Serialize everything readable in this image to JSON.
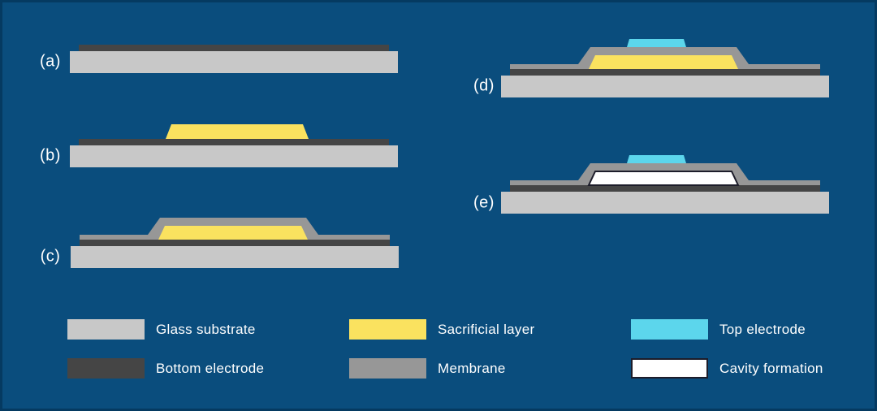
{
  "colors": {
    "background": "#0a4d7d",
    "edge_border": "#053a61",
    "glass_substrate": "#c8c8c8",
    "bottom_electrode": "#454545",
    "sacrificial_layer": "#fae25f",
    "membrane": "#979797",
    "top_electrode": "#5cd6ec",
    "cavity": "#ffffff",
    "cavity_outline": "#1d1d2a",
    "label_text": "#ffffff"
  },
  "steps": [
    {
      "label": "(a)",
      "layers": [
        "glass-substrate",
        "bottom-electrode"
      ]
    },
    {
      "label": "(b)",
      "layers": [
        "glass-substrate",
        "bottom-electrode",
        "sacrificial-layer"
      ]
    },
    {
      "label": "(c)",
      "layers": [
        "glass-substrate",
        "bottom-electrode",
        "sacrificial-layer",
        "membrane"
      ]
    },
    {
      "label": "(d)",
      "layers": [
        "glass-substrate",
        "bottom-electrode",
        "sacrificial-layer",
        "membrane",
        "top-electrode"
      ]
    },
    {
      "label": "(e)",
      "layers": [
        "glass-substrate",
        "bottom-electrode",
        "cavity",
        "membrane",
        "top-electrode"
      ]
    }
  ],
  "legend": {
    "items": [
      {
        "label": "Glass substrate",
        "color_key": "glass_substrate"
      },
      {
        "label": "Bottom electrode",
        "color_key": "bottom_electrode"
      },
      {
        "label": "Sacrificial layer",
        "color_key": "sacrificial_layer"
      },
      {
        "label": "Membrane",
        "color_key": "membrane"
      },
      {
        "label": "Top electrode",
        "color_key": "top_electrode"
      },
      {
        "label": "Cavity formation",
        "color_key": "cavity"
      }
    ]
  }
}
